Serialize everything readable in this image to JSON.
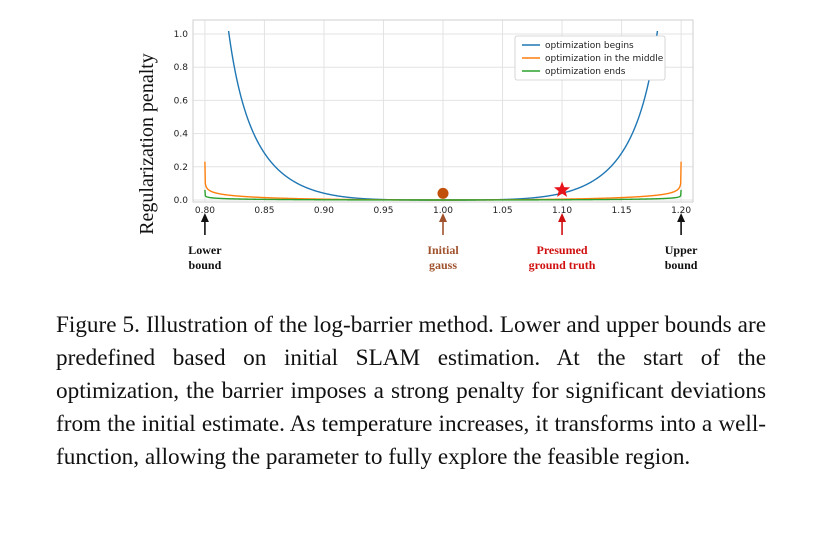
{
  "chart_data": {
    "type": "line",
    "ylabel": "Regularization penalty",
    "xlim": [
      0.79,
      1.21
    ],
    "ylim": [
      0.0,
      1.0
    ],
    "x_ticks": [
      "0.80",
      "0.85",
      "0.90",
      "0.95",
      "1.00",
      "1.05",
      "1.10",
      "1.15",
      "1.20"
    ],
    "y_ticks": [
      "0.0",
      "0.2",
      "0.4",
      "0.6",
      "0.8",
      "1.0"
    ],
    "grid": true,
    "legend_position": "top-right",
    "series": [
      {
        "name": "optimization begins",
        "color": "#1f77b4",
        "beta": 0.4,
        "k": 1.83
      },
      {
        "name": "optimization in the middle",
        "color": "#ff7f0e",
        "beta": 0.0176,
        "k": 1.0
      },
      {
        "name": "optimization ends",
        "color": "#2ca02c",
        "beta": 0.0046,
        "k": 1.0
      }
    ],
    "markers": [
      {
        "type": "dot",
        "x": 1.0,
        "y": 0.04,
        "color": "#c0500a"
      },
      {
        "type": "star",
        "x": 1.1,
        "y": 0.06,
        "color": "#e8141c"
      }
    ],
    "annotations": [
      {
        "x": 0.8,
        "lines": [
          "Lower",
          "bound"
        ],
        "color": "#111111"
      },
      {
        "x": 1.0,
        "lines": [
          "Initial",
          "gauss"
        ],
        "color": "#a0522d"
      },
      {
        "x": 1.1,
        "lines": [
          "Presumed",
          "ground truth"
        ],
        "color": "#d01010"
      },
      {
        "x": 1.2,
        "lines": [
          "Upper",
          "bound"
        ],
        "color": "#111111"
      }
    ]
  },
  "caption": "Figure 5. Illustration of the log-barrier method. Lower and upper bounds are predefined based on initial SLAM estimation. At the start of the optimization, the barrier imposes a strong penalty for significant deviations from the initial estimate. As temperature increases, it transforms into a well-function, allowing the parameter to fully explore the feasible region."
}
